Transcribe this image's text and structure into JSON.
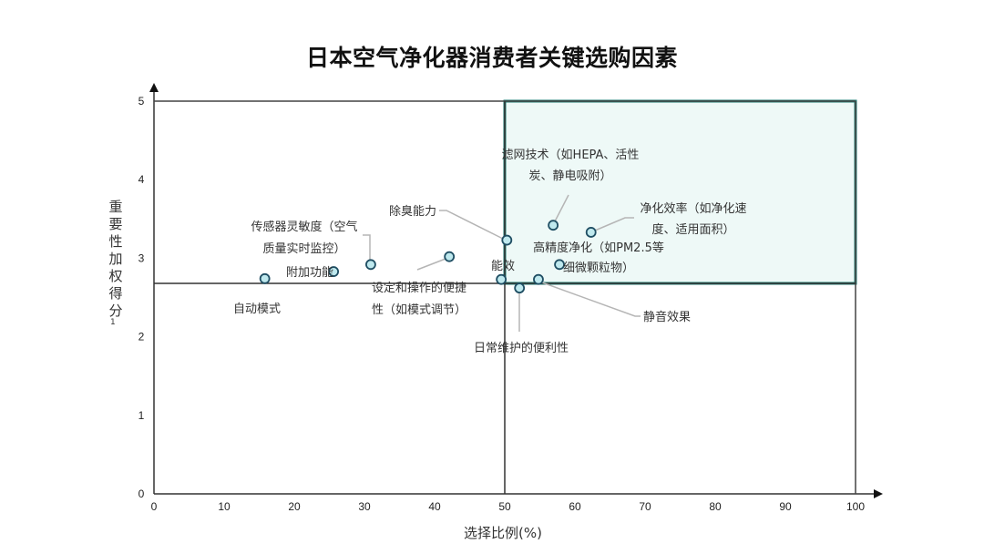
{
  "chart_data": {
    "type": "scatter",
    "title": "日本空气净化器消费者关键选购因素",
    "xlabel": "选择比例(%)",
    "ylabel": "重要性加权得分",
    "ylabel_superscript": "1",
    "xlim": [
      0,
      100
    ],
    "ylim": [
      0,
      5
    ],
    "x_ticks": [
      0,
      10,
      20,
      30,
      40,
      50,
      60,
      70,
      80,
      90,
      100
    ],
    "y_ticks": [
      0,
      1,
      2,
      3,
      4,
      5
    ],
    "grid": false,
    "quadrant_lines": {
      "x": 50,
      "y": 2.68
    },
    "highlight_quadrant": {
      "x": [
        50,
        100
      ],
      "y": [
        2.68,
        5
      ],
      "fill": "#eef9f7",
      "border": "#1e7a70"
    },
    "marker": {
      "fill": "#bfe9ee",
      "stroke": "#1f4e63"
    },
    "points": [
      {
        "label": "自动模式",
        "x": 15.8,
        "y": 2.74
      },
      {
        "label": "附加功能",
        "x": 25.6,
        "y": 2.83
      },
      {
        "label": "传感器灵敏度（空气质量实时监控）",
        "x": 30.9,
        "y": 2.92
      },
      {
        "label": "设定和操作的便捷性（如模式调节）",
        "x": 42.1,
        "y": 3.02
      },
      {
        "label": "除臭能力",
        "x": 50.3,
        "y": 3.23
      },
      {
        "label": "能效",
        "x": 49.5,
        "y": 2.73
      },
      {
        "label": "日常维护的便利性",
        "x": 52.1,
        "y": 2.62
      },
      {
        "label": "静音效果",
        "x": 54.8,
        "y": 2.73
      },
      {
        "label": "滤网技术（如HEPA、活性炭、静电吸附）",
        "x": 56.9,
        "y": 3.42
      },
      {
        "label": "高精度净化（如PM2.5等细微颗粒物）",
        "x": 57.8,
        "y": 2.92
      },
      {
        "label": "净化效率（如净化速度、适用面积）",
        "x": 62.3,
        "y": 3.33
      }
    ]
  },
  "labels": {
    "auto_mode": [
      "自动模式"
    ],
    "extra": [
      "附加功能"
    ],
    "sensor": [
      "传感器灵敏度（空气",
      "质量实时监控）"
    ],
    "ease": [
      "设定和操作的便捷",
      "性（如模式调节）"
    ],
    "deodor": [
      "除臭能力"
    ],
    "energy": [
      "能效"
    ],
    "maint": [
      "日常维护的便利性"
    ],
    "quiet": [
      "静音效果"
    ],
    "filter": [
      "滤网技术（如HEPA、活性",
      "炭、静电吸附）"
    ],
    "precise": [
      "高精度净化（如PM2.5等",
      "细微颗粒物）"
    ],
    "efficiency": [
      "净化效率（如净化速",
      "度、适用面积）"
    ]
  }
}
